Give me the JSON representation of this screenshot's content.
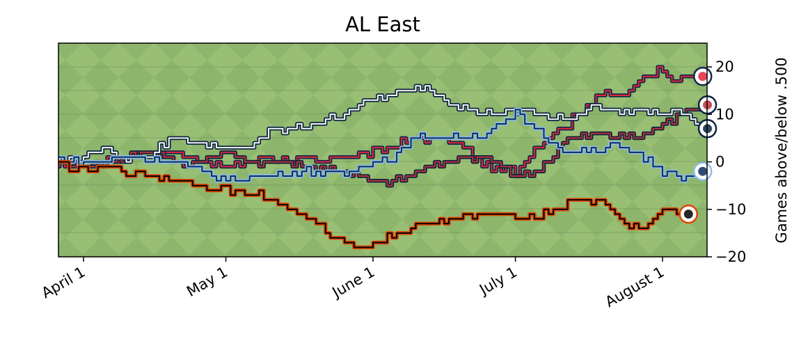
{
  "chart_data": {
    "type": "line",
    "title": "AL East",
    "xlabel": "",
    "ylabel": "Games above/below .500",
    "x_ticks": [
      "April  1",
      "May  1",
      "June  1",
      "July  1",
      "August  1"
    ],
    "y_ticks": [
      20,
      10,
      0,
      -10,
      -20
    ],
    "ylim": [
      -20,
      25
    ],
    "grid": false,
    "background": "baseball-field-grass",
    "series": [
      {
        "icon": "blue-jays-logo-icon",
        "outline_color": "#13284B",
        "inner_color": "#E2263A",
        "points": [
          [
            "03-26",
            0
          ],
          [
            "04-01",
            -1
          ],
          [
            "04-10",
            1
          ],
          [
            "04-20",
            2
          ],
          [
            "05-01",
            -1
          ],
          [
            "05-10",
            1
          ],
          [
            "05-20",
            0
          ],
          [
            "06-01",
            2
          ],
          [
            "06-10",
            5
          ],
          [
            "06-15",
            5
          ],
          [
            "06-20",
            3
          ],
          [
            "06-25",
            -1
          ],
          [
            "07-01",
            -2
          ],
          [
            "07-06",
            4
          ],
          [
            "07-12",
            8
          ],
          [
            "07-18",
            14
          ],
          [
            "07-25",
            14
          ],
          [
            "07-28",
            18
          ],
          [
            "08-01",
            20
          ],
          [
            "08-04",
            17
          ],
          [
            "08-08",
            18
          ]
        ]
      },
      {
        "icon": "red-sox-logo-icon",
        "outline_color": "#0C2340",
        "inner_color": "#BD3039",
        "points": [
          [
            "03-26",
            0
          ],
          [
            "04-01",
            -1
          ],
          [
            "04-10",
            1
          ],
          [
            "04-15",
            3
          ],
          [
            "04-22",
            -1
          ],
          [
            "05-01",
            2
          ],
          [
            "05-05",
            0
          ],
          [
            "05-12",
            0
          ],
          [
            "05-20",
            -1
          ],
          [
            "05-25",
            -2
          ],
          [
            "06-01",
            -4
          ],
          [
            "06-06",
            -4
          ],
          [
            "06-12",
            -1
          ],
          [
            "06-20",
            1
          ],
          [
            "06-25",
            1
          ],
          [
            "07-01",
            -3
          ],
          [
            "07-06",
            -2
          ],
          [
            "07-12",
            5
          ],
          [
            "07-18",
            6
          ],
          [
            "07-22",
            6
          ],
          [
            "07-26",
            5
          ],
          [
            "08-01",
            8
          ],
          [
            "08-05",
            10
          ],
          [
            "08-09",
            12
          ]
        ]
      },
      {
        "icon": "yankees-logo-icon",
        "outline_color": "#0C2340",
        "inner_color": "#F8F8F8",
        "points": [
          [
            "03-26",
            0
          ],
          [
            "04-01",
            1
          ],
          [
            "04-05",
            3
          ],
          [
            "04-10",
            0
          ],
          [
            "04-15",
            2
          ],
          [
            "04-20",
            5
          ],
          [
            "04-25",
            4
          ],
          [
            "05-01",
            3
          ],
          [
            "05-05",
            3
          ],
          [
            "05-10",
            6
          ],
          [
            "05-15",
            7
          ],
          [
            "05-20",
            8
          ],
          [
            "05-25",
            10
          ],
          [
            "05-31",
            13
          ],
          [
            "06-05",
            14
          ],
          [
            "06-12",
            16
          ],
          [
            "06-18",
            12
          ],
          [
            "06-25",
            10
          ],
          [
            "07-01",
            10
          ],
          [
            "07-04",
            11
          ],
          [
            "07-08",
            9
          ],
          [
            "07-12",
            9
          ],
          [
            "07-18",
            12
          ],
          [
            "07-22",
            10
          ],
          [
            "07-26",
            11
          ],
          [
            "08-01",
            10
          ],
          [
            "08-04",
            11
          ],
          [
            "08-09",
            7
          ]
        ]
      },
      {
        "icon": "rays-logo-icon",
        "outline_color": "#8FBCE6",
        "inner_color": "#092C5C",
        "points": [
          [
            "03-26",
            1
          ],
          [
            "04-01",
            0
          ],
          [
            "04-10",
            1
          ],
          [
            "04-20",
            0
          ],
          [
            "05-01",
            -4
          ],
          [
            "05-10",
            -3
          ],
          [
            "05-15",
            -2
          ],
          [
            "05-20",
            -2
          ],
          [
            "05-25",
            -3
          ],
          [
            "06-01",
            0
          ],
          [
            "06-05",
            1
          ],
          [
            "06-10",
            5
          ],
          [
            "06-15",
            5
          ],
          [
            "06-20",
            5
          ],
          [
            "06-25",
            6
          ],
          [
            "07-01",
            10
          ],
          [
            "07-08",
            5
          ],
          [
            "07-12",
            2
          ],
          [
            "07-18",
            2
          ],
          [
            "07-22",
            4
          ],
          [
            "07-26",
            2
          ],
          [
            "08-01",
            -2
          ],
          [
            "08-05",
            -4
          ],
          [
            "08-08",
            -2
          ]
        ]
      },
      {
        "icon": "orioles-logo-icon",
        "outline_color": "#DF4601",
        "inner_color": "#000000",
        "points": [
          [
            "03-26",
            0
          ],
          [
            "04-01",
            -2
          ],
          [
            "04-05",
            -1
          ],
          [
            "04-10",
            -2
          ],
          [
            "04-15",
            -3
          ],
          [
            "04-22",
            -4
          ],
          [
            "05-01",
            -6
          ],
          [
            "05-08",
            -7
          ],
          [
            "05-15",
            -10
          ],
          [
            "05-20",
            -13
          ],
          [
            "05-26",
            -17
          ],
          [
            "05-31",
            -18
          ],
          [
            "06-03",
            -16
          ],
          [
            "06-10",
            -14
          ],
          [
            "06-15",
            -12
          ],
          [
            "06-20",
            -12
          ],
          [
            "06-25",
            -11
          ],
          [
            "07-01",
            -12
          ],
          [
            "07-06",
            -11
          ],
          [
            "07-10",
            -10
          ],
          [
            "07-13",
            -8
          ],
          [
            "07-16",
            -8
          ],
          [
            "07-20",
            -9
          ],
          [
            "07-24",
            -13
          ],
          [
            "07-28",
            -14
          ],
          [
            "08-01",
            -10
          ],
          [
            "08-05",
            -11
          ]
        ]
      }
    ]
  }
}
